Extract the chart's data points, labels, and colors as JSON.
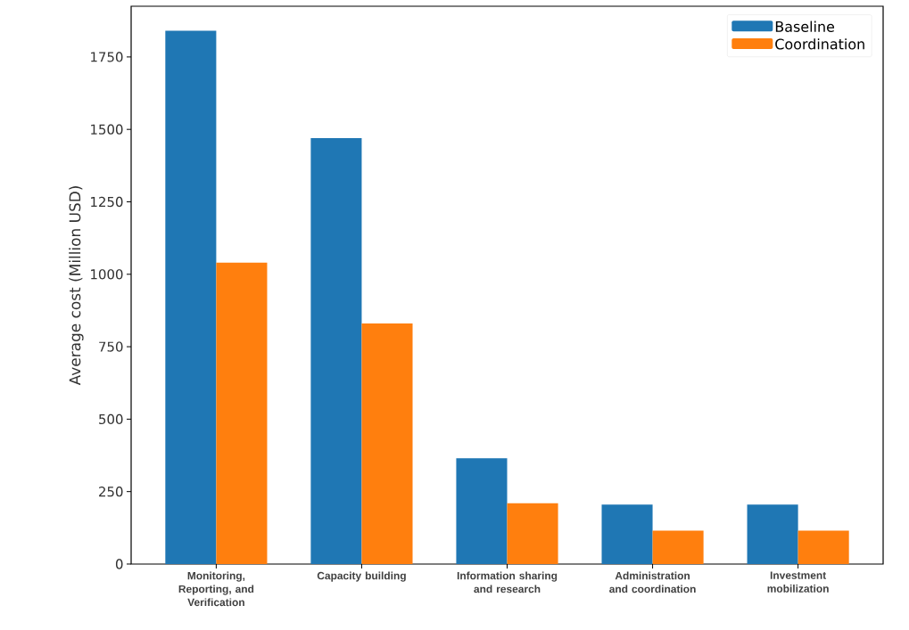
{
  "chart_data": {
    "type": "bar",
    "ylabel": "Average cost (Million USD)",
    "categories": [
      "Monitoring, Reporting, and Verification",
      "Capacity building",
      "Information sharing and research",
      "Administration and coordination",
      "Investment mobilization"
    ],
    "series": [
      {
        "name": "Baseline",
        "color": "#1f77b4",
        "values": [
          1840,
          1470,
          365,
          205,
          205
        ]
      },
      {
        "name": "Coordination",
        "color": "#ff7f0e",
        "values": [
          1040,
          830,
          210,
          115,
          115
        ]
      }
    ],
    "ylim": [
      0,
      1925
    ],
    "yticks": [
      0,
      250,
      500,
      750,
      1000,
      1250,
      1500,
      1750
    ],
    "legend": "top right"
  }
}
